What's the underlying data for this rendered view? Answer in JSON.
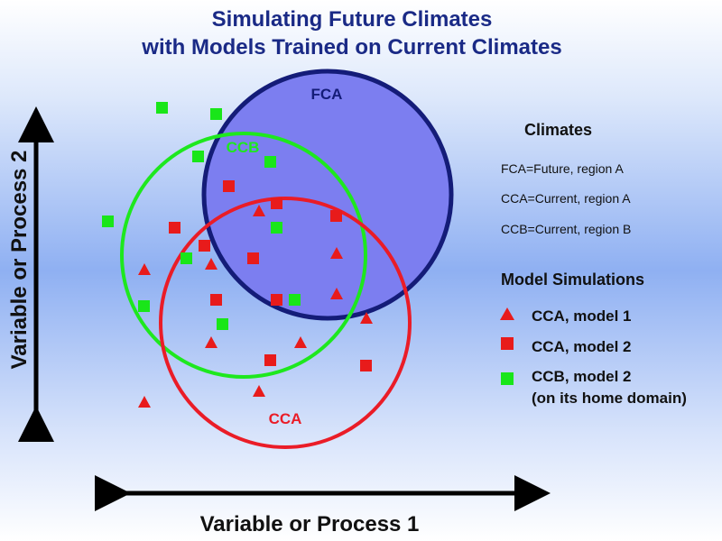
{
  "title": {
    "line1": "Simulating Future Climates",
    "line2": "with Models Trained on Current Climates"
  },
  "axes": {
    "x_label": "Variable or Process 1",
    "y_label": "Variable or Process 2"
  },
  "circles": [
    {
      "id": "fca",
      "label": "FCA",
      "stroke": "#141c78",
      "fill": "#7c7ef0",
      "filled": true
    },
    {
      "id": "ccb",
      "label": "CCB",
      "stroke": "#1ee81e",
      "fill": "none",
      "filled": false
    },
    {
      "id": "cca",
      "label": "CCA",
      "stroke": "#ea1c27",
      "fill": "none",
      "filled": false
    }
  ],
  "legend": {
    "climates_heading": "Climates",
    "climates": [
      "FCA=Future, region A",
      "CCA=Current, region A",
      "CCB=Current, region B"
    ],
    "simulations_heading": "Model Simulations",
    "simulations": [
      {
        "marker": "triangle",
        "color": "#e81b1b",
        "label": "CCA, model 1"
      },
      {
        "marker": "square",
        "color": "#e81b1b",
        "label": "CCA, model 2"
      },
      {
        "marker": "square",
        "color": "#19e619",
        "label": "CCB, model 2",
        "label2": "(on its home domain)"
      }
    ]
  },
  "colors": {
    "red": "#e81b1b",
    "green": "#19e619",
    "title": "#1a2a86",
    "axis": "#000000"
  }
}
